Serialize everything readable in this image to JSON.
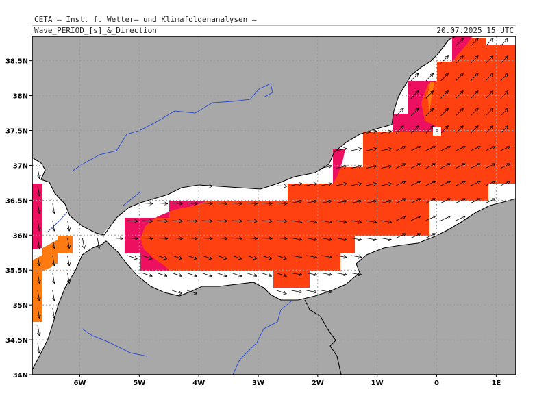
{
  "header": {
    "org": "CETA – Inst. f. Wetter– und Klimafolgenanalysen –",
    "title": "Wave_PERIOD_[s]_&_Direction",
    "datetime": "20.07.2025  15 UTC"
  },
  "map": {
    "lon_range": [
      -6.8,
      1.33
    ],
    "lat_range": [
      34.0,
      38.85
    ],
    "lat_ticks": [
      {
        "value": 38.5,
        "label": "38.5N"
      },
      {
        "value": 38.0,
        "label": "38N"
      },
      {
        "value": 37.5,
        "label": "37.5N"
      },
      {
        "value": 37.0,
        "label": "37N"
      },
      {
        "value": 36.5,
        "label": "36.5N"
      },
      {
        "value": 36.0,
        "label": "36N"
      },
      {
        "value": 35.5,
        "label": "35.5N"
      },
      {
        "value": 35.0,
        "label": "35N"
      },
      {
        "value": 34.5,
        "label": "34.5N"
      },
      {
        "value": 34.0,
        "label": "34N"
      }
    ],
    "lon_ticks": [
      {
        "value": -6,
        "label": "6W"
      },
      {
        "value": -5,
        "label": "5W"
      },
      {
        "value": -4,
        "label": "4W"
      },
      {
        "value": -3,
        "label": "3W"
      },
      {
        "value": -2,
        "label": "2W"
      },
      {
        "value": -1,
        "label": "1W"
      },
      {
        "value": 0,
        "label": "0"
      },
      {
        "value": 1,
        "label": "1E"
      }
    ],
    "contour_label": "5",
    "colors": {
      "land": "#a8a8a8",
      "sea": "#ffffff",
      "period_main": "#ff4010",
      "period_high": "#ee1060",
      "period_low": "#ff7a10",
      "rivers": "#3050d0",
      "coast": "#000000",
      "grid": "#9a9a9a"
    }
  }
}
